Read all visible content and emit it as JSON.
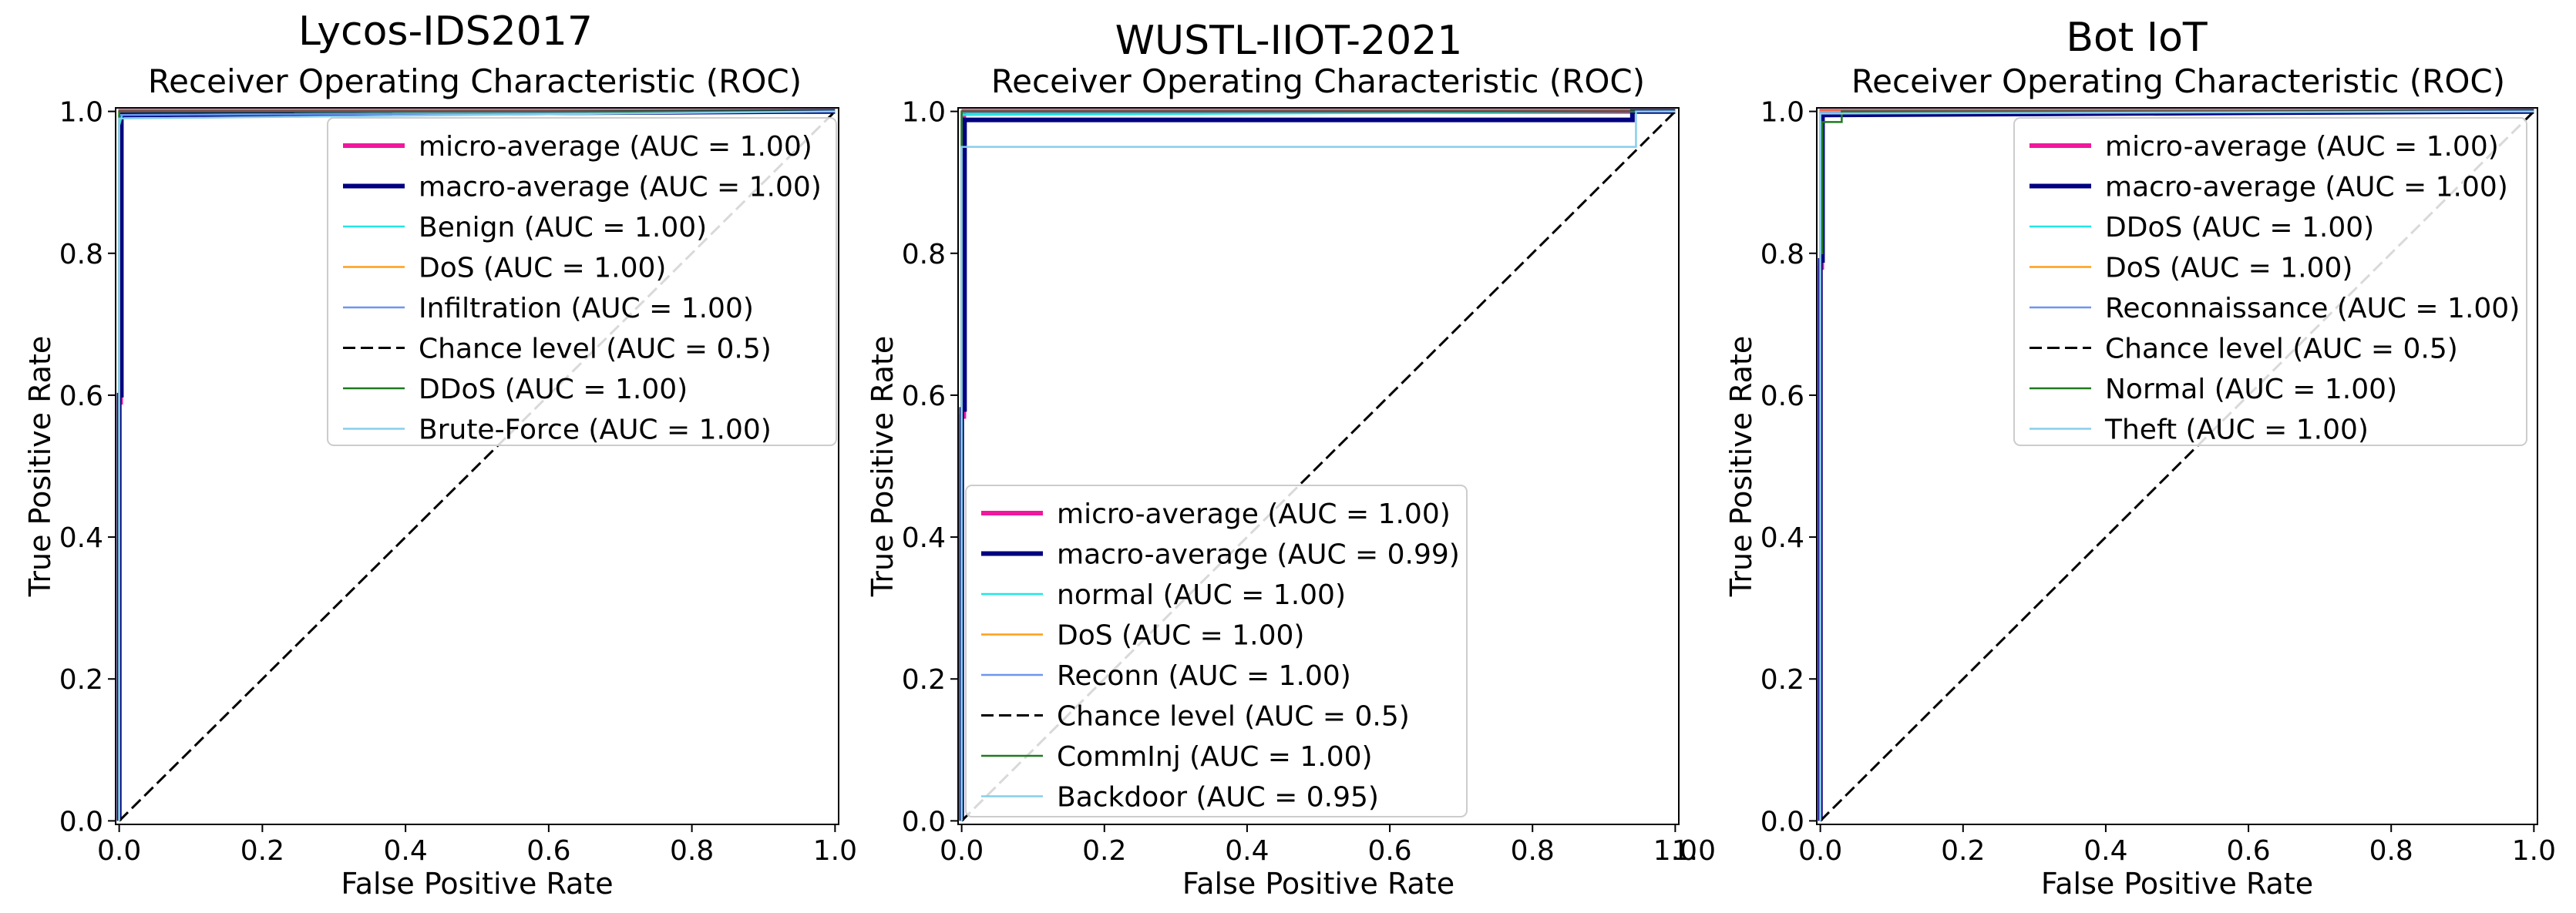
{
  "figure": {
    "colors": {
      "micro": "#f0189c",
      "macro": "#000080",
      "aqua": "#22e5e5",
      "orange": "#ff9f1a",
      "cornflower": "#6e96ee",
      "chance": "#000000",
      "green": "#1e7a1e",
      "skyblue": "#87ceeb"
    }
  },
  "chart_data": [
    {
      "type": "line",
      "dataset_title": "Lycos-IDS2017",
      "title": "Receiver Operating Characteristic (ROC)",
      "xlabel": "False Positive Rate",
      "ylabel": "True Positive Rate",
      "xlim": [
        -0.005,
        1.005
      ],
      "ylim": [
        -0.005,
        1.005
      ],
      "xticks": [
        "0.0",
        "0.2",
        "0.4",
        "0.6",
        "0.8",
        "1.0"
      ],
      "yticks": [
        "0.0",
        "0.2",
        "0.4",
        "0.6",
        "0.8",
        "1.0"
      ],
      "legend_position": "upper-right",
      "series": [
        {
          "name": "micro-average (AUC = 1.00)",
          "color": "#f0189c",
          "style": "solid",
          "bold": true,
          "x": [
            0,
            0,
            0.002,
            0.002,
            1
          ],
          "y": [
            0,
            0.59,
            0.59,
            1.0,
            1.0
          ]
        },
        {
          "name": "macro-average (AUC = 1.00)",
          "color": "#000080",
          "style": "solid",
          "bold": true,
          "x": [
            0,
            0,
            0.003,
            0.003,
            1
          ],
          "y": [
            0,
            0.6,
            0.6,
            0.995,
            1.0
          ]
        },
        {
          "name": "Benign (AUC = 1.00)",
          "color": "#22e5e5",
          "style": "solid",
          "bold": false,
          "x": [
            0,
            0,
            0.004,
            1
          ],
          "y": [
            0,
            0.98,
            0.995,
            1.0
          ]
        },
        {
          "name": "DoS (AUC = 1.00)",
          "color": "#ff9f1a",
          "style": "solid",
          "bold": false,
          "x": [
            0,
            0,
            1
          ],
          "y": [
            0,
            1.0,
            1.0
          ]
        },
        {
          "name": "Infiltration (AUC = 1.00)",
          "color": "#6e96ee",
          "style": "solid",
          "bold": false,
          "x": [
            0,
            0,
            1
          ],
          "y": [
            0,
            0.995,
            1.0
          ]
        },
        {
          "name": "Chance level (AUC = 0.5)",
          "color": "#000000",
          "style": "dashed",
          "bold": false,
          "x": [
            0,
            1
          ],
          "y": [
            0,
            1
          ]
        },
        {
          "name": "DDoS (AUC = 1.00)",
          "color": "#1e7a1e",
          "style": "solid",
          "bold": false,
          "x": [
            0,
            0,
            1
          ],
          "y": [
            0,
            1.0,
            1.0
          ]
        },
        {
          "name": "Brute-Force (AUC = 1.00)",
          "color": "#87ceeb",
          "style": "solid",
          "bold": false,
          "x": [
            0,
            0,
            1
          ],
          "y": [
            0,
            0.99,
            1.0
          ]
        }
      ]
    },
    {
      "type": "line",
      "dataset_title": "WUSTL-IIOT-2021",
      "title": "Receiver Operating Characteristic (ROC)",
      "xlabel": "False Positive Rate",
      "ylabel": "True Positive Rate",
      "xlim": [
        -0.005,
        1.005
      ],
      "ylim": [
        -0.005,
        1.005
      ],
      "xticks": [
        "0.0",
        "0.2",
        "0.4",
        "0.6",
        "0.8",
        "1.0"
      ],
      "xtick_extra": "1.0",
      "yticks": [
        "0.0",
        "0.2",
        "0.4",
        "0.6",
        "0.8",
        "1.0"
      ],
      "legend_position": "lower-left",
      "series": [
        {
          "name": "micro-average (AUC = 1.00)",
          "color": "#f0189c",
          "style": "solid",
          "bold": true,
          "x": [
            0,
            0,
            0.003,
            0.003,
            1
          ],
          "y": [
            0,
            0.57,
            0.57,
            1.0,
            1.0
          ]
        },
        {
          "name": "macro-average (AUC = 0.99)",
          "color": "#000080",
          "style": "solid",
          "bold": true,
          "x": [
            0,
            0,
            0.004,
            0.004,
            0.94,
            0.94,
            1
          ],
          "y": [
            0,
            0.58,
            0.58,
            0.988,
            0.988,
            1.0,
            1.0
          ]
        },
        {
          "name": "normal (AUC = 1.00)",
          "color": "#22e5e5",
          "style": "solid",
          "bold": false,
          "x": [
            0,
            0,
            1
          ],
          "y": [
            0,
            0.995,
            1.0
          ]
        },
        {
          "name": "DoS (AUC = 1.00)",
          "color": "#ff9f1a",
          "style": "solid",
          "bold": false,
          "x": [
            0,
            0,
            1
          ],
          "y": [
            0,
            1.0,
            1.0
          ]
        },
        {
          "name": "Reconn (AUC = 1.00)",
          "color": "#6e96ee",
          "style": "solid",
          "bold": false,
          "x": [
            0,
            0,
            1
          ],
          "y": [
            0,
            0.998,
            1.0
          ]
        },
        {
          "name": "Chance level (AUC = 0.5)",
          "color": "#000000",
          "style": "dashed",
          "bold": false,
          "x": [
            0,
            1
          ],
          "y": [
            0,
            1
          ]
        },
        {
          "name": "CommInj (AUC = 1.00)",
          "color": "#1e7a1e",
          "style": "solid",
          "bold": false,
          "x": [
            0,
            0,
            1
          ],
          "y": [
            0,
            1.0,
            1.0
          ]
        },
        {
          "name": "Backdoor (AUC = 0.95)",
          "color": "#87ceeb",
          "style": "solid",
          "bold": false,
          "x": [
            0,
            0,
            0.945,
            0.945,
            1
          ],
          "y": [
            0,
            0.95,
            0.95,
            1.0,
            1.0
          ]
        }
      ]
    },
    {
      "type": "line",
      "dataset_title": "Bot IoT",
      "title": "Receiver Operating Characteristic (ROC)",
      "xlabel": "False Positive Rate",
      "ylabel": "True Positive Rate",
      "xlim": [
        -0.005,
        1.005
      ],
      "ylim": [
        -0.005,
        1.005
      ],
      "xticks": [
        "0.0",
        "0.2",
        "0.4",
        "0.6",
        "0.8",
        "1.0"
      ],
      "yticks": [
        "0.0",
        "0.2",
        "0.4",
        "0.6",
        "0.8",
        "1.0"
      ],
      "legend_position": "upper-right",
      "series": [
        {
          "name": "micro-average (AUC = 1.00)",
          "color": "#f0189c",
          "style": "solid",
          "bold": true,
          "x": [
            0,
            0,
            0.002,
            0.002,
            1
          ],
          "y": [
            0,
            0.78,
            0.78,
            1.0,
            1.0
          ]
        },
        {
          "name": "macro-average (AUC = 1.00)",
          "color": "#000080",
          "style": "solid",
          "bold": true,
          "x": [
            0,
            0,
            0.003,
            0.003,
            1
          ],
          "y": [
            0,
            0.79,
            0.79,
            0.995,
            1.0
          ]
        },
        {
          "name": "DDoS (AUC = 1.00)",
          "color": "#22e5e5",
          "style": "solid",
          "bold": false,
          "x": [
            0,
            0,
            1
          ],
          "y": [
            0,
            1.0,
            1.0
          ]
        },
        {
          "name": "DoS (AUC = 1.00)",
          "color": "#ff9f1a",
          "style": "solid",
          "bold": false,
          "x": [
            0,
            0,
            1
          ],
          "y": [
            0,
            1.0,
            1.0
          ]
        },
        {
          "name": "Reconnaissance (AUC = 1.00)",
          "color": "#6e96ee",
          "style": "solid",
          "bold": false,
          "x": [
            0,
            0,
            1
          ],
          "y": [
            0,
            0.998,
            1.0
          ]
        },
        {
          "name": "Chance level (AUC = 0.5)",
          "color": "#000000",
          "style": "dashed",
          "bold": false,
          "x": [
            0,
            1
          ],
          "y": [
            0,
            1
          ]
        },
        {
          "name": "Normal (AUC = 1.00)",
          "color": "#1e7a1e",
          "style": "solid",
          "bold": false,
          "x": [
            0,
            0,
            0.003,
            0.003,
            0.03,
            0.03,
            1
          ],
          "y": [
            0,
            0.8,
            0.8,
            0.985,
            0.985,
            1.0,
            1.0
          ]
        },
        {
          "name": "Theft (AUC = 1.00)",
          "color": "#87ceeb",
          "style": "solid",
          "bold": false,
          "x": [
            0,
            0,
            1
          ],
          "y": [
            0,
            0.997,
            1.0
          ]
        }
      ]
    }
  ]
}
